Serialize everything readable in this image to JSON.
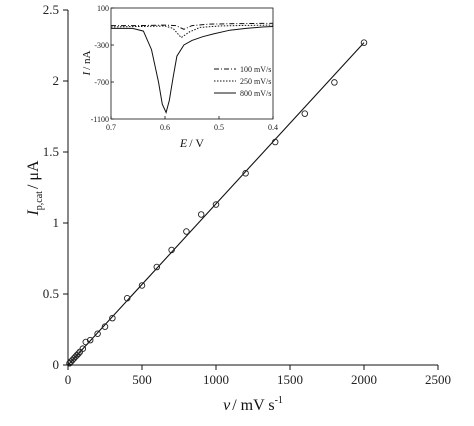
{
  "chart_data": [
    {
      "type": "scatter",
      "xlabel_main": "v",
      "xlabel_unit": "/ mV s",
      "xlabel_sup": "-1",
      "ylabel_main": "I",
      "ylabel_sub": "p,cat",
      "ylabel_unit": "/ μA",
      "xlim": [
        0,
        2500
      ],
      "ylim": [
        0,
        2.5
      ],
      "xticks": [
        0,
        500,
        1000,
        1500,
        2000,
        2500
      ],
      "yticks": [
        0,
        0.5,
        1,
        1.5,
        2,
        2.5
      ],
      "xtick_labels": [
        "0",
        "500",
        "1000",
        "1500",
        "2000",
        "2500"
      ],
      "ytick_labels": [
        "0",
        "0.5",
        "1",
        "1.5",
        "2",
        "2.5"
      ],
      "grid": false,
      "series": [
        {
          "marker": "open-circle",
          "x": [
            10,
            20,
            30,
            40,
            50,
            60,
            70,
            80,
            100,
            120,
            150,
            200,
            250,
            300,
            400,
            500,
            600,
            700,
            800,
            900,
            1000,
            1200,
            1400,
            1600,
            1800,
            2000
          ],
          "y": [
            0.012,
            0.024,
            0.035,
            0.046,
            0.058,
            0.069,
            0.08,
            0.092,
            0.115,
            0.162,
            0.175,
            0.22,
            0.27,
            0.33,
            0.47,
            0.56,
            0.69,
            0.81,
            0.94,
            1.06,
            1.13,
            1.35,
            1.57,
            1.77,
            1.99,
            2.27
          ]
        }
      ],
      "fit_line": {
        "x": [
          0,
          2000
        ],
        "y": [
          0,
          2.27
        ]
      }
    },
    {
      "type": "line",
      "xlabel_main": "E",
      "xlabel_unit": "/ V",
      "ylabel_main": "I",
      "ylabel_unit": "/ nA",
      "xlim": [
        -0.7,
        -0.4
      ],
      "ylim": [
        -1100,
        100
      ],
      "xticks": [
        -0.7,
        -0.6,
        -0.5,
        -0.4
      ],
      "yticks": [
        -1100,
        -700,
        -300,
        100
      ],
      "xtick_labels": [
        "0.7",
        "0.6",
        "0.5",
        "0.4"
      ],
      "ytick_labels": [
        "-1100",
        "-700",
        "-300",
        "100"
      ],
      "legend_position": "bottom-right",
      "series": [
        {
          "name": "100 mV/s",
          "style": "dash-dot",
          "x": [
            -0.7,
            -0.65,
            -0.6,
            -0.58,
            -0.565,
            -0.55,
            -0.52,
            -0.48,
            -0.44,
            -0.4
          ],
          "y": [
            -90,
            -90,
            -85,
            -90,
            -130,
            -90,
            -75,
            -70,
            -68,
            -65
          ]
        },
        {
          "name": "250 mV/s",
          "style": "dotted",
          "x": [
            -0.7,
            -0.65,
            -0.6,
            -0.585,
            -0.57,
            -0.555,
            -0.535,
            -0.5,
            -0.45,
            -0.4
          ],
          "y": [
            -105,
            -100,
            -95,
            -120,
            -220,
            -160,
            -110,
            -95,
            -88,
            -85
          ]
        },
        {
          "name": "800 mV/s",
          "style": "solid",
          "x": [
            -0.7,
            -0.66,
            -0.64,
            -0.625,
            -0.612,
            -0.605,
            -0.598,
            -0.592,
            -0.585,
            -0.578,
            -0.565,
            -0.55,
            -0.53,
            -0.51,
            -0.48,
            -0.45,
            -0.42,
            -0.4
          ],
          "y": [
            -120,
            -120,
            -150,
            -350,
            -700,
            -940,
            -1030,
            -900,
            -650,
            -420,
            -300,
            -250,
            -210,
            -180,
            -140,
            -120,
            -105,
            -100
          ]
        }
      ]
    }
  ]
}
